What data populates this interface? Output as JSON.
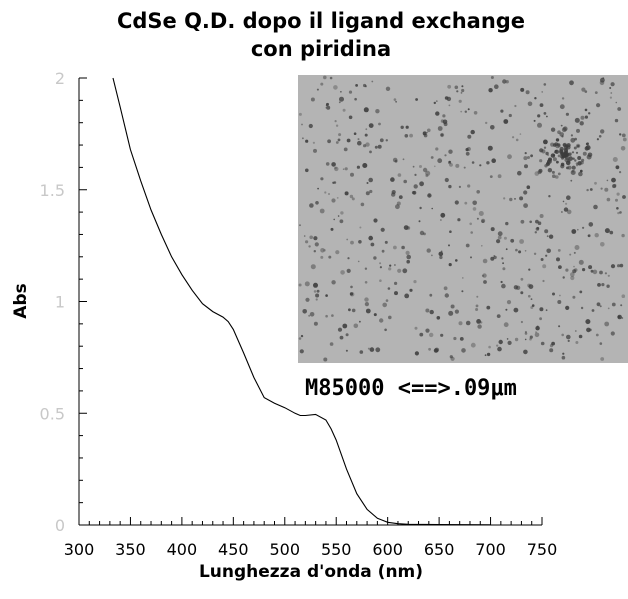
{
  "chart_data": {
    "type": "line",
    "title_lines": [
      "CdSe Q.D. dopo il ligand exchange",
      "con piridina"
    ],
    "xlabel": "Lunghezza d'onda (nm)",
    "ylabel": "Abs",
    "xlim": [
      300,
      750
    ],
    "ylim": [
      0,
      2
    ],
    "x_ticks": [
      300,
      350,
      400,
      450,
      500,
      550,
      600,
      650,
      700,
      750
    ],
    "y_ticks": [
      0,
      0.5,
      1,
      1.5,
      2
    ],
    "y_tick_labels": [
      "0",
      "0.5",
      "1",
      "1.5",
      "2"
    ],
    "grid": false,
    "series": [
      {
        "color": "#000000",
        "x": [
          333,
          340,
          350,
          360,
          370,
          380,
          390,
          400,
          410,
          420,
          430,
          440,
          445,
          450,
          460,
          470,
          480,
          490,
          500,
          510,
          515,
          520,
          530,
          540,
          545,
          550,
          560,
          570,
          580,
          590,
          600,
          610,
          620,
          650,
          700
        ],
        "y": [
          2.0,
          1.87,
          1.68,
          1.54,
          1.41,
          1.3,
          1.2,
          1.12,
          1.05,
          0.99,
          0.955,
          0.93,
          0.91,
          0.875,
          0.77,
          0.66,
          0.57,
          0.545,
          0.525,
          0.5,
          0.49,
          0.49,
          0.495,
          0.47,
          0.43,
          0.38,
          0.25,
          0.14,
          0.07,
          0.03,
          0.012,
          0.006,
          0.003,
          0.002,
          0.001
        ]
      }
    ]
  },
  "inset": {
    "caption": "M85000 <==>.09μm",
    "image_fill": "#b4b4b4",
    "particle_color": "#3c3c3c"
  }
}
